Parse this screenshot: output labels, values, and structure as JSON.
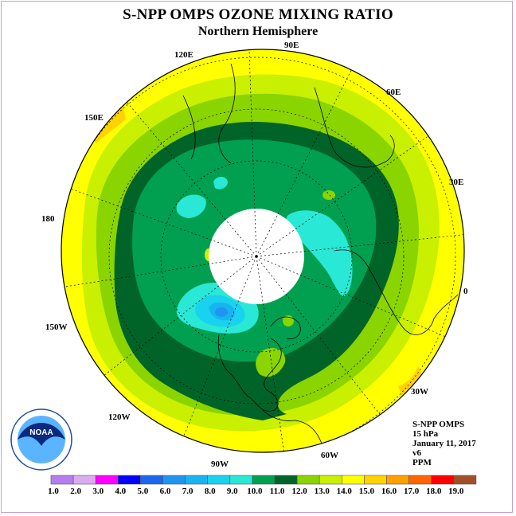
{
  "title": "S-NPP OMPS OZONE MIXING RATIO",
  "subtitle": "Northern Hemisphere",
  "longitude_labels": [
    "90E",
    "60E",
    "30E",
    "0",
    "30W",
    "60W",
    "90W",
    "120W",
    "150W",
    "180",
    "150E",
    "120E"
  ],
  "info": {
    "instrument": "S-NPP OMPS",
    "level": "15 hPa",
    "date": "January 11, 2017",
    "version": "v6",
    "units": "PPM"
  },
  "logo": {
    "text": "NOAA"
  },
  "colorbar": {
    "labels": [
      "1.0",
      "2.0",
      "3.0",
      "4.0",
      "5.0",
      "6.0",
      "7.0",
      "8.0",
      "9.0",
      "10.0",
      "11.0",
      "12.0",
      "13.0",
      "14.0",
      "15.0",
      "16.0",
      "17.0",
      "18.0",
      "19.0"
    ],
    "colors": [
      "#b67cf0",
      "#dcaaf0",
      "#ff00ff",
      "#0000ff",
      "#1a66f0",
      "#1e96f0",
      "#18b4f0",
      "#18d2f0",
      "#2ae8d6",
      "#00a050",
      "#006428",
      "#8ad400",
      "#c8f000",
      "#ffff00",
      "#ffd200",
      "#ffa000",
      "#ff6400",
      "#ff0000",
      "#a05028"
    ]
  }
}
